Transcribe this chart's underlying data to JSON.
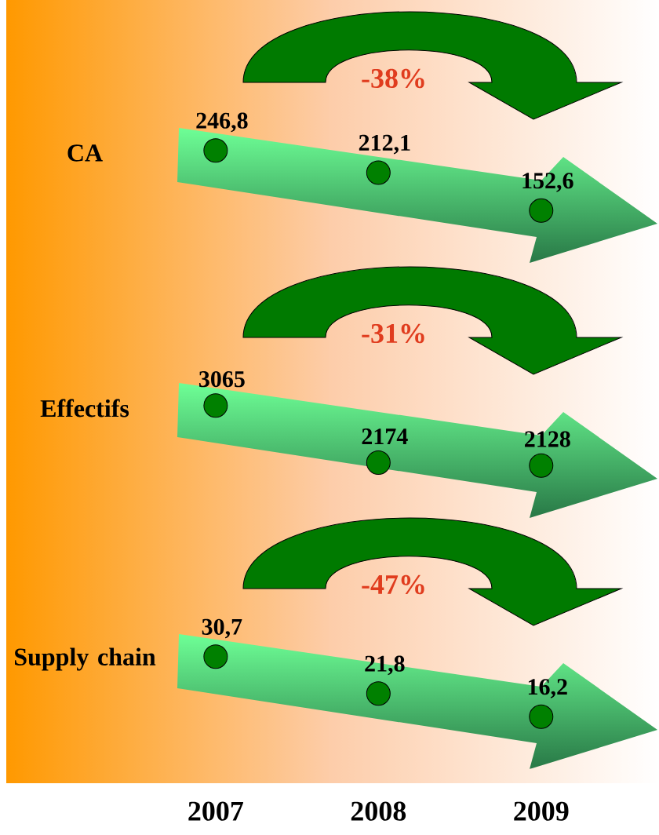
{
  "chart_data": [
    {
      "type": "scatter",
      "ylabel": "CA",
      "categories": [
        "2007",
        "2008",
        "2009"
      ],
      "values": [
        246.8,
        212.1,
        152.6
      ],
      "value_labels": [
        "246,8",
        "212,1",
        "152,6"
      ],
      "color": "#008000",
      "annotations": [
        "-38%"
      ],
      "tick_labels": false
    },
    {
      "type": "scatter",
      "ylabel": "Effectifs",
      "categories": [
        "2007",
        "2008",
        "2009"
      ],
      "values": [
        3065,
        2174,
        2128
      ],
      "value_labels": [
        "3065",
        "2174",
        "2128"
      ],
      "color": "#008000",
      "annotations": [
        "-31%"
      ],
      "tick_labels": false
    },
    {
      "type": "scatter",
      "ylabel": "Supply chain",
      "categories": [
        "2007",
        "2008",
        "2009"
      ],
      "values": [
        30.7,
        21.8,
        16.2
      ],
      "value_labels": [
        "30,7",
        "21,8",
        "16,2"
      ],
      "color": "#008000",
      "annotations": [
        "-47%"
      ],
      "tick_labels": "x"
    }
  ]
}
